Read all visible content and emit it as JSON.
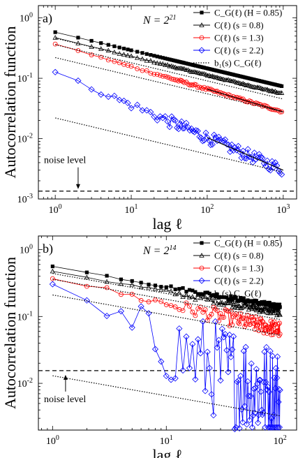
{
  "chart_data": [
    {
      "type": "line",
      "panel_label": "a)",
      "annotation": "N = 2^21",
      "annotation_base": "N = 2",
      "annotation_exp": "21",
      "ylabel": "Autocorrelation function",
      "xlabel": "lag ℓ",
      "x_scale": "log",
      "y_scale": "log",
      "xlim": [
        0.6,
        1500
      ],
      "ylim": [
        0.001,
        1.6
      ],
      "x_ticks": [
        {
          "b": "10",
          "e": "0",
          "v": 1
        },
        {
          "b": "10",
          "e": "1",
          "v": 10
        },
        {
          "b": "10",
          "e": "2",
          "v": 100
        },
        {
          "b": "10",
          "e": "3",
          "v": 1000
        }
      ],
      "y_ticks": [
        {
          "b": "10",
          "e": "0",
          "v": 1
        },
        {
          "b": "10",
          "e": "-1",
          "v": 0.1
        },
        {
          "b": "10",
          "e": "-2",
          "v": 0.01
        },
        {
          "b": "10",
          "e": "-3",
          "v": 0.001
        }
      ],
      "noise_level": 0.00135,
      "noise_label": "noise level",
      "legend_position": "top-right",
      "series": [
        {
          "legend": "C_G(ℓ) (H = 0.85)",
          "color": "#000000",
          "marker": "square",
          "amp": 0.58,
          "slope": -0.3,
          "noise": 0.0,
          "fit": 0
        },
        {
          "legend": "C(ℓ) (s = 0.8)",
          "color": "#000000",
          "marker": "triangle",
          "amp": 0.47,
          "slope": -0.31,
          "noise": 0.015,
          "fit": 0
        },
        {
          "legend": "C(ℓ) (s = 1.3)",
          "color": "#ff0000",
          "marker": "circle",
          "amp": 0.37,
          "slope": -0.375,
          "noise": 0.03,
          "fit": 0
        },
        {
          "legend": "C(ℓ) (s = 2.2)",
          "color": "#0000ff",
          "marker": "diamond",
          "amp": 0.125,
          "slope": -0.54,
          "noise": 0.15,
          "fit": 0
        },
        {
          "legend": "b₁(s) C_G(ℓ)",
          "color": "#000000",
          "marker": "none",
          "amp": 0.46,
          "slope": -0.3,
          "dotted": [
            0.46,
            0.36,
            0.22,
            0.022
          ]
        }
      ]
    },
    {
      "type": "line",
      "panel_label": "b)",
      "annotation": "N = 2^14",
      "annotation_base": "N = 2",
      "annotation_exp": "14",
      "ylabel": "Autocorrelation function",
      "xlabel": "lag ℓ",
      "x_scale": "log",
      "y_scale": "log",
      "xlim": [
        0.75,
        140
      ],
      "ylim": [
        0.002,
        1.6
      ],
      "x_ticks": [
        {
          "b": "10",
          "e": "0",
          "v": 1
        },
        {
          "b": "10",
          "e": "1",
          "v": 10
        },
        {
          "b": "10",
          "e": "2",
          "v": 100
        }
      ],
      "y_ticks": [
        {
          "b": "10",
          "e": "0",
          "v": 1
        },
        {
          "b": "10",
          "e": "-1",
          "v": 0.1
        },
        {
          "b": "10",
          "e": "-2",
          "v": 0.01
        }
      ],
      "noise_level": 0.0155,
      "noise_label": "noise level",
      "legend_position": "top-right",
      "series": [
        {
          "legend": "C_G(ℓ) (H = 0.85)",
          "color": "#000000",
          "marker": "square",
          "amp": 0.56,
          "slope": -0.3,
          "noise": 0.05
        },
        {
          "legend": "C(ℓ) (s = 0.8)",
          "color": "#000000",
          "marker": "triangle",
          "amp": 0.48,
          "slope": -0.31,
          "noise": 0.08
        },
        {
          "legend": "C(ℓ) (s = 1.3)",
          "color": "#ff0000",
          "marker": "circle",
          "amp": 0.38,
          "slope": -0.39,
          "noise": 0.18
        },
        {
          "legend": "C(ℓ) (s = 2.2)",
          "color": "#0000ff",
          "marker": "diamond",
          "amp": 0.23,
          "slope": -0.8,
          "noise": 0.6
        },
        {
          "legend": "b₁(s) C_G(ℓ)",
          "color": "#000000",
          "marker": "none",
          "amp": 0.44,
          "slope": -0.3,
          "dotted": [
            0.44,
            0.36,
            0.21,
            0.013
          ]
        }
      ]
    }
  ]
}
